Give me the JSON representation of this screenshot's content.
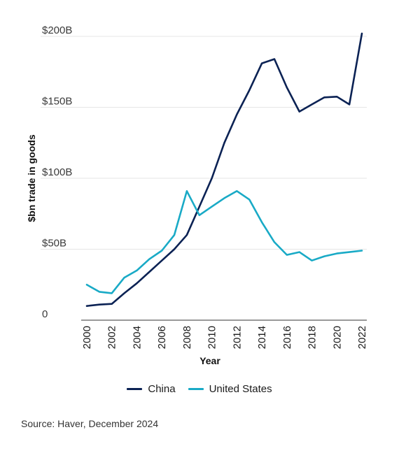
{
  "chart_data": {
    "type": "line",
    "title": "",
    "xlabel": "Year",
    "ylabel": "$bn trade in goods",
    "x": [
      2000,
      2001,
      2002,
      2003,
      2004,
      2005,
      2006,
      2007,
      2008,
      2009,
      2010,
      2011,
      2012,
      2013,
      2014,
      2015,
      2016,
      2017,
      2018,
      2019,
      2020,
      2021,
      2022
    ],
    "x_tick_labels": [
      "2000",
      "2002",
      "2004",
      "2006",
      "2008",
      "2010",
      "2012",
      "2014",
      "2016",
      "2018",
      "2020",
      "2022"
    ],
    "y_tick_labels": [
      "0",
      "$50B",
      "$100B",
      "$150B",
      "$200B"
    ],
    "y_ticks": [
      0,
      50,
      100,
      150,
      200
    ],
    "ylim": [
      0,
      200
    ],
    "xlim": [
      2000,
      2022
    ],
    "grid": "horizontal",
    "legend_position": "bottom",
    "series": [
      {
        "name": "China",
        "color": "#0b2254",
        "values": [
          10,
          11,
          11.5,
          19,
          26,
          34,
          42,
          50,
          60,
          80,
          100,
          125,
          145,
          162,
          181,
          184,
          164,
          147,
          152,
          157,
          157.5,
          152,
          202
        ]
      },
      {
        "name": "United States",
        "color": "#19aac6",
        "values": [
          25,
          20,
          19,
          30,
          35,
          43,
          49,
          60,
          91,
          74,
          80,
          86,
          91,
          85,
          69,
          55,
          46,
          48,
          42,
          45,
          47,
          48,
          49
        ]
      }
    ]
  },
  "source": "Source: Haver, December 2024"
}
